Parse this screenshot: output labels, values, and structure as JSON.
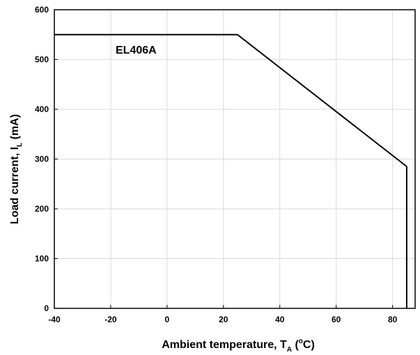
{
  "chart_data": {
    "type": "line",
    "title": "",
    "xlabel": {
      "main": "Ambient temperature, T",
      "sub": "A",
      "unit_open": " (",
      "unit_sup": "o",
      "unit_close": "C)"
    },
    "ylabel": {
      "main": "Load current, I",
      "sub": "L",
      "unit": " (mA)"
    },
    "xlim": [
      -40,
      88
    ],
    "ylim": [
      0,
      600
    ],
    "xticks": [
      -40,
      -20,
      0,
      20,
      40,
      60,
      80
    ],
    "yticks": [
      0,
      100,
      200,
      300,
      400,
      500,
      600
    ],
    "grid": true,
    "series": [
      {
        "name": "EL406A",
        "x": [
          -40,
          25,
          85,
          85
        ],
        "y": [
          550,
          550,
          285,
          0
        ]
      }
    ]
  }
}
